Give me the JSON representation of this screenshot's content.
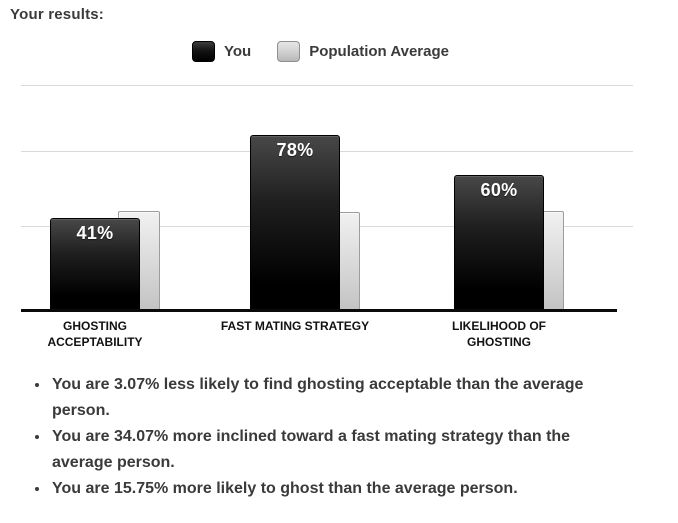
{
  "page": {
    "title": "Your results:"
  },
  "legend": {
    "items": [
      {
        "label": "You",
        "swatch": "black"
      },
      {
        "label": "Population Average",
        "swatch": "gray"
      }
    ]
  },
  "chart_data": {
    "type": "bar",
    "categories": [
      "GHOSTING ACCEPTABILITY",
      "FAST MATING STRATEGY",
      "LIKELIHOOD OF GHOSTING"
    ],
    "series": [
      {
        "name": "You",
        "color": "#0d0d0d",
        "values": [
          41,
          78,
          60
        ],
        "value_labels": [
          "41%",
          "78%",
          "60%"
        ]
      },
      {
        "name": "Population Average",
        "color": "#d9d9d9",
        "values": [
          44.07,
          43.93,
          44.25
        ],
        "value_labels": [
          "",
          "",
          ""
        ]
      }
    ],
    "title": "",
    "xlabel": "",
    "ylabel": "",
    "ylim": [
      0,
      100
    ],
    "grid": true,
    "legend_position": "top"
  },
  "results": {
    "bullets": [
      "You are 3.07% less likely to find ghosting acceptable than the average person.",
      "You are 34.07% more inclined toward a fast mating strategy than the average person.",
      "You are 15.75% more likely to ghost than the average person."
    ]
  },
  "colors": {
    "text": "#3b3b3b",
    "bar_you": "#0d0d0d",
    "bar_avg": "#d9d9d9",
    "gridline": "#d9d9d9",
    "axis": "#000000",
    "value_label": "#ffffff"
  }
}
